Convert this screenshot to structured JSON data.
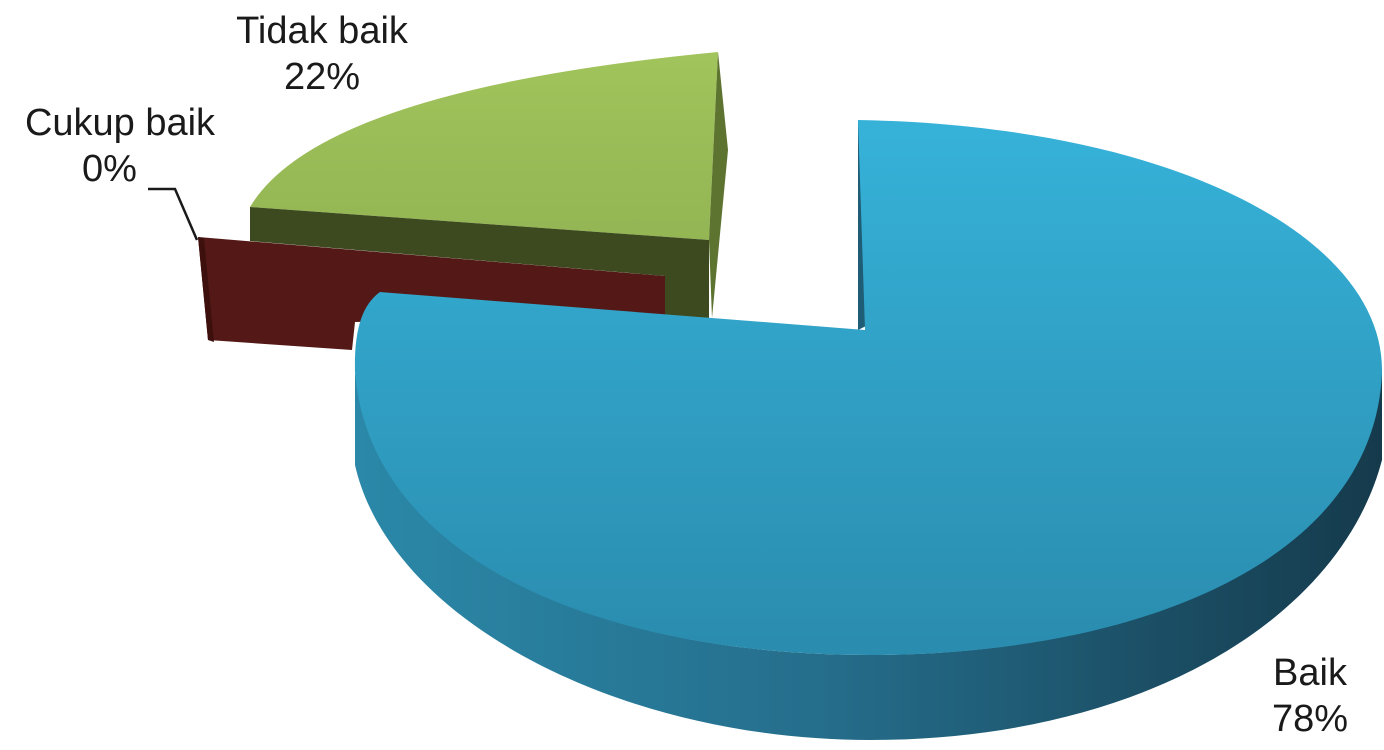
{
  "chart_data": {
    "type": "pie",
    "title": "",
    "slices": [
      {
        "label": "Baik",
        "value": 78,
        "value_label": "78%",
        "color": "#2fa3c8"
      },
      {
        "label": "Tidak baik",
        "value": 22,
        "value_label": "22%",
        "color": "#9bbb59"
      },
      {
        "label": "Cukup baik",
        "value": 0,
        "value_label": "0%",
        "color": "#5a1a17"
      }
    ],
    "style": "3d-exploded"
  }
}
